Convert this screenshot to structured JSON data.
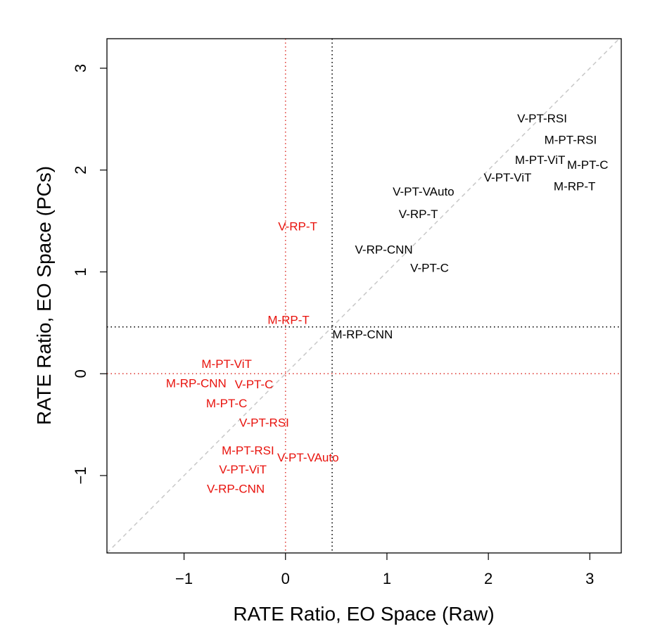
{
  "chart_data": {
    "type": "scatter",
    "title": "",
    "xlabel": "RATE Ratio, EO Space (Raw)",
    "ylabel": "RATE Ratio, EO Space (PCs)",
    "xlim": [
      -1.76,
      3.31
    ],
    "ylim": [
      -1.76,
      3.29
    ],
    "xticks": [
      -1,
      0,
      1,
      2,
      3
    ],
    "yticks": [
      -1,
      0,
      1,
      2,
      3
    ],
    "grid": false,
    "marker": "text labels",
    "reference_lines": {
      "diagonal": {
        "slope": 1,
        "intercept": 0,
        "style": "dashed",
        "color": "#c8c8c8"
      },
      "black_dotted": {
        "x": 0.46,
        "y": 0.46,
        "color": "#000000"
      },
      "red_dotted": {
        "x": 0,
        "y": 0,
        "color": "#e0403a"
      }
    },
    "series": [
      {
        "color": "#000000",
        "points": [
          {
            "label": "V-PT-RSI",
            "x": 2.53,
            "y": 2.51
          },
          {
            "label": "M-PT-RSI",
            "x": 2.81,
            "y": 2.3
          },
          {
            "label": "M-PT-ViT",
            "x": 2.51,
            "y": 2.17
          },
          {
            "label": "M-PT-C",
            "x": 2.84,
            "y": 2.19
          },
          {
            "label": "M-RP-T",
            "x": 2.85,
            "y": 2.05
          },
          {
            "label": "V-PT-ViT",
            "x": 2.19,
            "y": 1.93
          },
          {
            "label": "V-PT-VAuto",
            "x": 1.36,
            "y": 1.79
          },
          {
            "label": "V-RP-T",
            "x": 1.31,
            "y": 1.57
          },
          {
            "label": "V-RP-CNN",
            "x": 0.97,
            "y": 1.22
          },
          {
            "label": "V-PT-C",
            "x": 1.42,
            "y": 1.11
          },
          {
            "label": "M-RP-CNN",
            "x": 0.76,
            "y": 0.39
          }
        ]
      },
      {
        "color": "#e8120c",
        "points": [
          {
            "label": "V-RP-T",
            "x": 0.12,
            "y": 1.45
          },
          {
            "label": "M-RP-T",
            "x": 0.03,
            "y": 0.53
          },
          {
            "label": "M-PT-ViT",
            "x": -0.58,
            "y": 0.1
          },
          {
            "label": "M-RP-CNN",
            "x": -0.88,
            "y": -0.09
          },
          {
            "label": "M-PT-C",
            "x": -0.58,
            "y": -0.15
          },
          {
            "label": "V-PT-C",
            "x": -0.31,
            "y": -0.24
          },
          {
            "label": "V-PT-RSI",
            "x": -0.21,
            "y": -0.48
          },
          {
            "label": "M-PT-RSI",
            "x": -0.37,
            "y": -0.75
          },
          {
            "label": "V-PT-ViT",
            "x": -0.42,
            "y": -0.8
          },
          {
            "label": "V-PT-VAuto",
            "x": -0.09,
            "y": -0.82
          },
          {
            "label": "V-RP-CNN",
            "x": -0.49,
            "y": -1.06
          }
        ]
      }
    ]
  }
}
